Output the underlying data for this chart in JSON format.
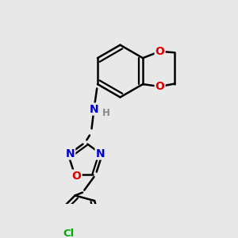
{
  "bg_color": "#e8e8e8",
  "bond_color": "#000000",
  "bond_width": 1.8,
  "atom_colors": {
    "N": "#0000cc",
    "O": "#dd0000",
    "Cl": "#00aa00",
    "H": "#888888",
    "C": "#000000"
  },
  "font_size_atom": 10,
  "font_size_small": 8.5,
  "font_size_cl": 9.5
}
